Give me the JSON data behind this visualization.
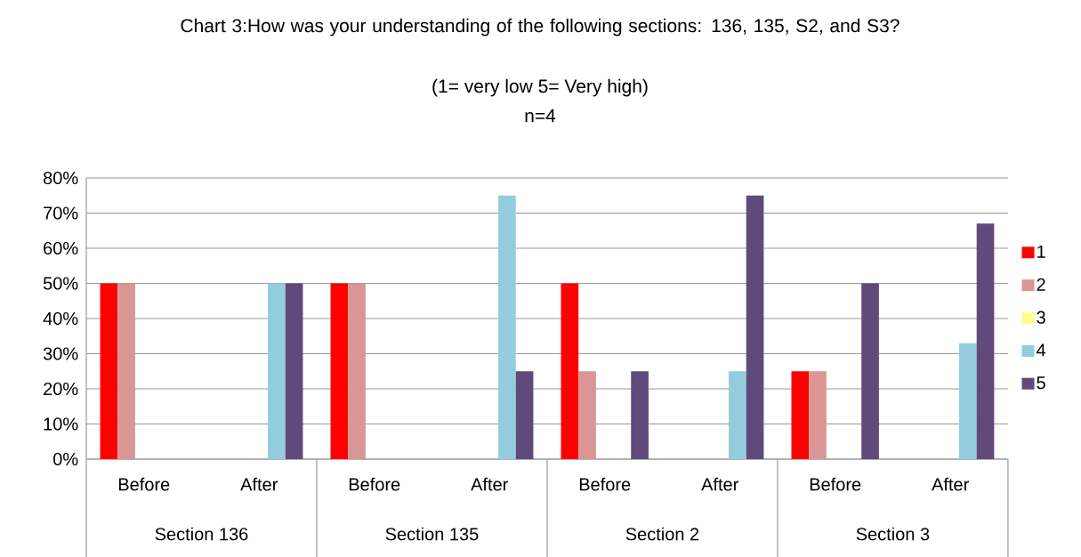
{
  "chart_data": {
    "type": "bar",
    "title": "Chart 3:How was your understanding of the following sections: 136, 135, S2, and S3?",
    "subtitle": "(1= very low 5= Very high)",
    "annotations": [
      "n=4",
      "Section 136",
      "Section 135",
      "Section 2",
      "Section 3"
    ],
    "categories": [
      "Before",
      "After",
      "Before",
      "After",
      "Before",
      "After",
      "Before",
      "After"
    ],
    "series": [
      {
        "name": "1",
        "color": "#ff0000",
        "values": [
          50,
          0,
          50,
          0,
          50,
          0,
          25,
          0
        ]
      },
      {
        "name": "2",
        "color": "#d99694",
        "values": [
          50,
          0,
          50,
          0,
          25,
          0,
          25,
          0
        ]
      },
      {
        "name": "3",
        "color": "#ffff88",
        "values": [
          0,
          0,
          0,
          0,
          0,
          0,
          0,
          0
        ]
      },
      {
        "name": "4",
        "color": "#93cddd",
        "values": [
          0,
          50,
          0,
          75,
          0,
          25,
          0,
          33
        ]
      },
      {
        "name": "5",
        "color": "#604a7b",
        "values": [
          0,
          50,
          0,
          25,
          25,
          75,
          50,
          67
        ]
      }
    ],
    "ylim": [
      0,
      80
    ],
    "yticks": [
      {
        "value": 0,
        "label": "0%"
      },
      {
        "value": 10,
        "label": "10%"
      },
      {
        "value": 20,
        "label": "20%"
      },
      {
        "value": 30,
        "label": "30%"
      },
      {
        "value": 40,
        "label": "40%"
      },
      {
        "value": 50,
        "label": "50%"
      },
      {
        "value": 60,
        "label": "60%"
      },
      {
        "value": 70,
        "label": "70%"
      },
      {
        "value": 80,
        "label": "80%"
      }
    ],
    "grid": "y",
    "legend": "right"
  }
}
